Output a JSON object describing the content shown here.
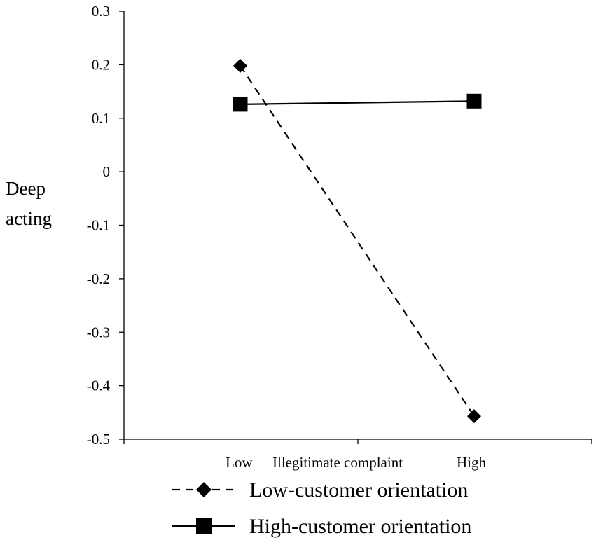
{
  "chart_data": {
    "type": "line",
    "categories": [
      "Low",
      "High"
    ],
    "xlabel": "Illegitimate complaint",
    "ylabel_lines": [
      "Deep",
      "acting"
    ],
    "ylim": [
      -0.5,
      0.3
    ],
    "yticks": [
      "0.3",
      "0.2",
      "0.1",
      "0",
      "-0.1",
      "-0.2",
      "-0.3",
      "-0.4",
      "-0.5"
    ],
    "ytick_values": [
      0.3,
      0.2,
      0.1,
      0,
      -0.1,
      -0.2,
      -0.3,
      -0.4,
      -0.5
    ],
    "grid": false,
    "legend_position": "bottom",
    "series": [
      {
        "name": "Low-customer orientation",
        "values": [
          0.198,
          -0.457
        ],
        "line_style": "dashed",
        "marker": "diamond",
        "color": "#000000"
      },
      {
        "name": "High-customer orientation",
        "values": [
          0.126,
          0.132
        ],
        "line_style": "solid",
        "marker": "square",
        "color": "#000000"
      }
    ]
  }
}
